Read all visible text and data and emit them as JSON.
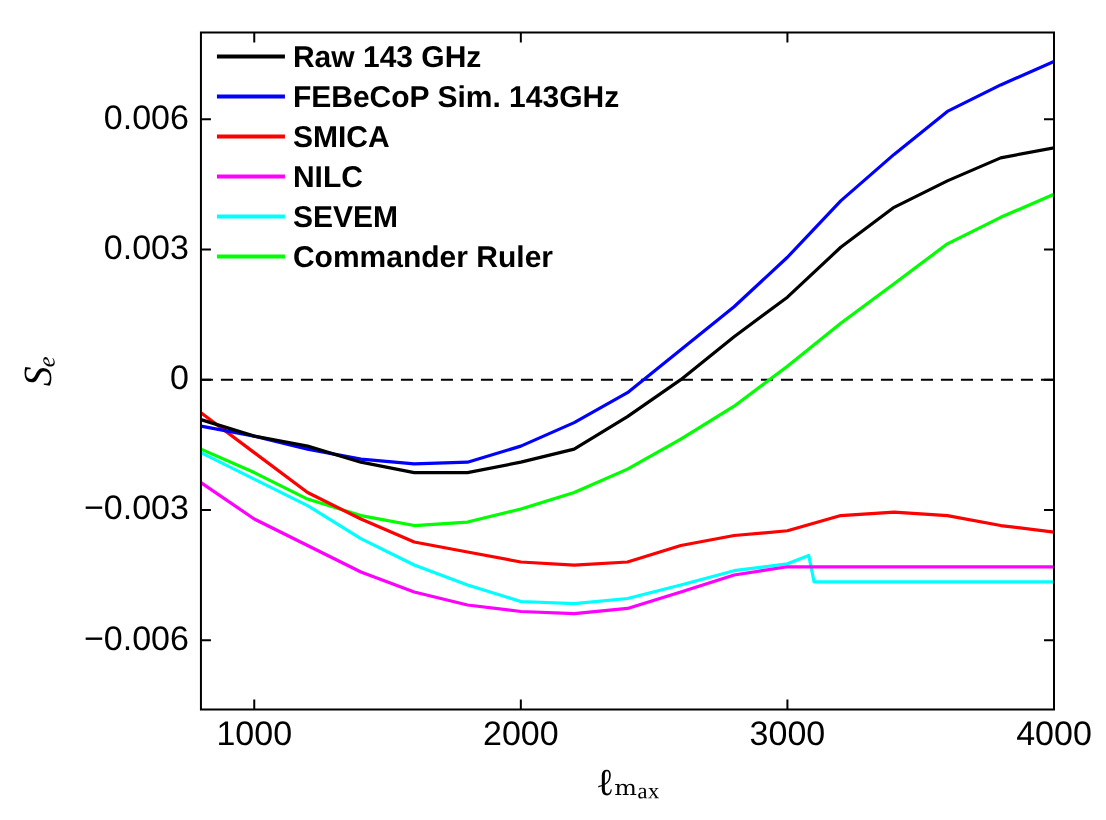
{
  "chart_data": {
    "type": "line",
    "xlabel": "ℓₘₐₓ",
    "ylabel": "Sₑ",
    "x": [
      800,
      1000,
      1200,
      1400,
      1600,
      1800,
      2000,
      2200,
      2400,
      2600,
      2800,
      3000,
      3200,
      3400,
      3600,
      3800,
      4000
    ],
    "series": [
      {
        "name": "Raw 143 GHz",
        "color": "#000000",
        "values": [
          -0.00092,
          -0.0013,
          -0.00153,
          -0.0019,
          -0.00214,
          -0.00214,
          -0.0019,
          -0.0016,
          -0.00085,
          0.0,
          0.00099,
          0.0019,
          0.00305,
          0.00397,
          0.00458,
          0.00511,
          0.00534
        ]
      },
      {
        "name": "FEBeCoP Sim. 143GHz",
        "color": "#0000ff",
        "values": [
          -0.00107,
          -0.0013,
          -0.0016,
          -0.00183,
          -0.00194,
          -0.0019,
          -0.00153,
          -0.00099,
          -0.0003,
          0.00069,
          0.00168,
          0.00282,
          0.00412,
          0.00519,
          0.00618,
          0.00679,
          0.00733
        ]
      },
      {
        "name": "SMICA",
        "color": "#ff0000",
        "values": [
          -0.00076,
          -0.00168,
          -0.0026,
          -0.00321,
          -0.00374,
          -0.00397,
          -0.0042,
          -0.00427,
          -0.0042,
          -0.00382,
          -0.00359,
          -0.00348,
          -0.00313,
          -0.00305,
          -0.00313,
          -0.00336,
          -0.00351
        ]
      },
      {
        "name": "NILC",
        "color": "#ff00ff",
        "values": [
          -0.00237,
          -0.00321,
          -0.00382,
          -0.00443,
          -0.00489,
          -0.00519,
          -0.00534,
          -0.00539,
          -0.00527,
          -0.00489,
          -0.0045,
          -0.00431,
          -0.00431,
          -0.00431,
          -0.00431,
          -0.00431,
          -0.00431
        ]
      },
      {
        "name": "SEVEM",
        "color": "#00ffff",
        "x": [
          800,
          1000,
          1200,
          1400,
          1600,
          1800,
          2000,
          2200,
          2400,
          2600,
          2800,
          3000,
          3080,
          3100,
          3400,
          3700,
          4000
        ],
        "values": [
          -0.00168,
          -0.00229,
          -0.0029,
          -0.00366,
          -0.00427,
          -0.00473,
          -0.00511,
          -0.00516,
          -0.00504,
          -0.00473,
          -0.0044,
          -0.00424,
          -0.00405,
          -0.00466,
          -0.00466,
          -0.00466,
          -0.00466
        ]
      },
      {
        "name": "Commander Ruler",
        "color": "#00ff00",
        "values": [
          -0.0016,
          -0.00214,
          -0.00275,
          -0.00313,
          -0.00336,
          -0.00328,
          -0.00298,
          -0.0026,
          -0.00206,
          -0.00137,
          -0.00061,
          0.00031,
          0.0013,
          0.00221,
          0.00313,
          0.00374,
          0.00427
        ]
      }
    ],
    "xlim": [
      800,
      4000
    ],
    "xticks": [
      1000,
      2000,
      3000,
      4000
    ],
    "ylim": [
      -0.0076,
      0.008
    ],
    "yticks": [
      {
        "value": -0.006,
        "label": "−0.006"
      },
      {
        "value": -0.003,
        "label": "−0.003"
      },
      0,
      0.003,
      0.006
    ],
    "ref_lines": [
      {
        "axis": "y",
        "value": 0,
        "color": "#000000",
        "line_style": "dashed"
      }
    ],
    "legend": "top left",
    "grid": false,
    "line_style": "solid",
    "marker": "none"
  }
}
